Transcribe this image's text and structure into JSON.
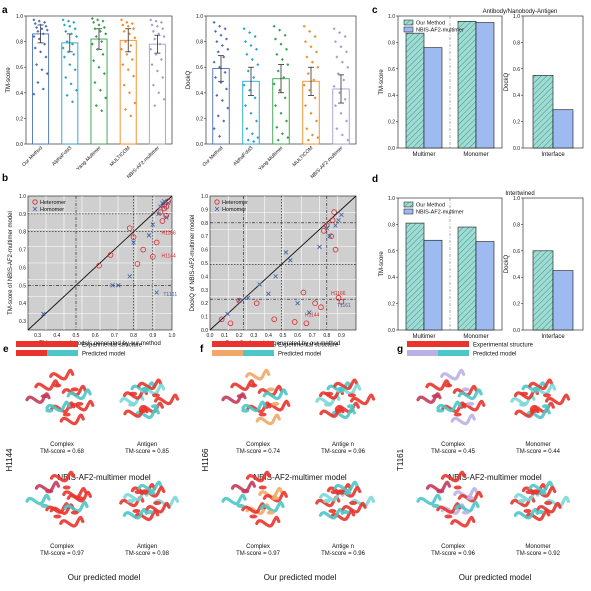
{
  "panel_labels": {
    "a": "a",
    "b": "b",
    "c": "c",
    "d": "d",
    "e": "e",
    "f": "f",
    "g": "g"
  },
  "colors": {
    "our_method": "#4a6fb5",
    "alphafold3": "#23a3c9",
    "yang_multimer": "#34a04a",
    "multicom": "#f08a24",
    "nbis": "#a89ad1",
    "hetero": "#d62728",
    "homo": "#3b5ea8",
    "our_bar": "#9fdcd3",
    "nbis_bar": "#9dbbf0",
    "experimental": "#e8342c",
    "predicted_our": "#4cc6c6",
    "predicted_nbis": "#bcb1e6",
    "predicted_orange": "#f0a868"
  },
  "chart_data": [
    {
      "id": "a-left",
      "type": "bar",
      "categories": [
        "Our Method",
        "AlphaFold3",
        "Yang-Multimer",
        "MULTICOM",
        "NBIS-AF2-multimer"
      ],
      "values": [
        0.86,
        0.79,
        0.82,
        0.81,
        0.78
      ],
      "errors": [
        0.07,
        0.07,
        0.08,
        0.09,
        0.07
      ],
      "ylabel": "TM-score",
      "ylim": [
        0,
        1.0
      ],
      "yticks": [
        "0.0",
        "0.2",
        "0.4",
        "0.6",
        "0.8",
        "1.0"
      ],
      "points": [
        [
          0.97,
          0.96,
          0.95,
          0.94,
          0.93,
          0.92,
          0.91,
          0.9,
          0.89,
          0.88,
          0.86,
          0.84,
          0.82,
          0.78,
          0.75,
          0.72,
          0.68,
          0.62,
          0.58,
          0.55,
          0.48,
          0.43,
          0.39
        ],
        [
          0.97,
          0.96,
          0.95,
          0.93,
          0.92,
          0.9,
          0.88,
          0.86,
          0.84,
          0.8,
          0.78,
          0.75,
          0.72,
          0.7,
          0.68,
          0.62,
          0.58,
          0.52,
          0.47,
          0.42,
          0.38,
          0.33
        ],
        [
          0.98,
          0.97,
          0.96,
          0.95,
          0.93,
          0.91,
          0.9,
          0.88,
          0.86,
          0.84,
          0.8,
          0.78,
          0.74,
          0.7,
          0.65,
          0.6,
          0.55,
          0.48,
          0.42,
          0.36,
          0.3,
          0.26
        ],
        [
          0.97,
          0.95,
          0.94,
          0.93,
          0.92,
          0.9,
          0.88,
          0.86,
          0.83,
          0.8,
          0.77,
          0.74,
          0.7,
          0.66,
          0.62,
          0.58,
          0.53,
          0.46,
          0.4,
          0.32,
          0.27,
          0.22
        ],
        [
          0.97,
          0.96,
          0.95,
          0.93,
          0.92,
          0.9,
          0.88,
          0.86,
          0.84,
          0.82,
          0.78,
          0.74,
          0.7,
          0.66,
          0.62,
          0.57,
          0.52,
          0.46,
          0.4,
          0.35,
          0.3
        ]
      ]
    },
    {
      "id": "a-right",
      "type": "bar",
      "categories": [
        "Our Method",
        "AlphaFold3",
        "Yang-Multimer",
        "MULTICOM",
        "NBIS-AF2-multimer"
      ],
      "values": [
        0.59,
        0.49,
        0.51,
        0.49,
        0.43
      ],
      "errors": [
        0.1,
        0.11,
        0.11,
        0.11,
        0.11
      ],
      "ylabel": "DockQ",
      "ylim": [
        0,
        1.0
      ],
      "yticks": [
        "0.0",
        "0.2",
        "0.4",
        "0.6",
        "0.8",
        "1.0"
      ],
      "points": [
        [
          0.95,
          0.92,
          0.9,
          0.88,
          0.85,
          0.82,
          0.8,
          0.77,
          0.74,
          0.72,
          0.68,
          0.64,
          0.6,
          0.56,
          0.52,
          0.48,
          0.43,
          0.38,
          0.34,
          0.28,
          0.22,
          0.18,
          0.12,
          0.06
        ],
        [
          0.9,
          0.87,
          0.84,
          0.8,
          0.77,
          0.74,
          0.7,
          0.66,
          0.62,
          0.57,
          0.52,
          0.46,
          0.42,
          0.36,
          0.3,
          0.24,
          0.18,
          0.12,
          0.08,
          0.05,
          0.03,
          0.02
        ],
        [
          0.92,
          0.89,
          0.85,
          0.82,
          0.78,
          0.74,
          0.7,
          0.66,
          0.62,
          0.57,
          0.52,
          0.47,
          0.42,
          0.36,
          0.3,
          0.24,
          0.18,
          0.13,
          0.08,
          0.05,
          0.03
        ],
        [
          0.92,
          0.88,
          0.84,
          0.8,
          0.76,
          0.72,
          0.68,
          0.64,
          0.6,
          0.55,
          0.5,
          0.46,
          0.42,
          0.36,
          0.3,
          0.24,
          0.18,
          0.12,
          0.07,
          0.05,
          0.03
        ],
        [
          0.9,
          0.87,
          0.84,
          0.8,
          0.76,
          0.72,
          0.68,
          0.64,
          0.6,
          0.55,
          0.5,
          0.45,
          0.4,
          0.35,
          0.3,
          0.24,
          0.18,
          0.12,
          0.07,
          0.03
        ]
      ]
    },
    {
      "id": "b-left",
      "type": "scatter",
      "xlabel": "TM-score of models generated by our method",
      "ylabel": "TM-score of NBIS-AF2-multimer model",
      "xlim": [
        0.25,
        1.0
      ],
      "ylim": [
        0.25,
        1.0
      ],
      "xticks": [
        "0.3",
        "0.4",
        "0.5",
        "0.6",
        "0.7",
        "0.8",
        "0.9",
        "1.0"
      ],
      "yticks": [
        "0.3",
        "0.4",
        "0.5",
        "0.6",
        "0.7",
        "0.8",
        "0.9",
        "1.0"
      ],
      "series": [
        {
          "name": "Heteromer",
          "marker": "circle",
          "x": [
            0.62,
            0.68,
            0.82,
            0.8,
            0.78,
            0.85,
            0.9,
            0.92,
            0.95,
            0.97,
            0.96,
            0.96,
            0.98,
            0.94,
            0.97
          ],
          "y": [
            0.61,
            0.67,
            0.62,
            0.77,
            0.82,
            0.7,
            0.66,
            0.74,
            0.86,
            0.89,
            0.93,
            0.95,
            0.97,
            0.91,
            0.94
          ]
        },
        {
          "name": "Homomer",
          "marker": "x",
          "x": [
            0.33,
            0.69,
            0.72,
            0.78,
            0.8,
            0.88,
            0.9,
            0.93,
            0.94,
            0.95,
            0.96,
            0.97,
            0.98,
            0.92
          ],
          "y": [
            0.34,
            0.5,
            0.5,
            0.55,
            0.74,
            0.78,
            0.84,
            0.9,
            0.94,
            0.96,
            0.97,
            0.88,
            0.96,
            0.46
          ]
        }
      ],
      "annotations": [
        {
          "text": "H1166",
          "x": 0.945,
          "y": 0.785,
          "color": "#d62728"
        },
        {
          "text": "H1144",
          "x": 0.945,
          "y": 0.655,
          "color": "#d62728"
        },
        {
          "text": "T1161",
          "x": 0.955,
          "y": 0.44,
          "color": "#3b5ea8"
        }
      ]
    },
    {
      "id": "b-right",
      "type": "scatter",
      "xlabel": "DockQ of models generated by our method",
      "ylabel": "DockQ of NBIS-AF2-multimer model",
      "xlim": [
        0,
        1.0
      ],
      "ylim": [
        0,
        1.0
      ],
      "xticks": [
        "0.0",
        "0.1",
        "0.2",
        "0.3",
        "0.4",
        "0.5",
        "0.6",
        "0.7",
        "0.8",
        "0.9"
      ],
      "yticks": [
        "0.0",
        "0.1",
        "0.2",
        "0.3",
        "0.4",
        "0.5",
        "0.6",
        "0.7",
        "0.8",
        "0.9",
        "1.0"
      ],
      "series": [
        {
          "name": "Heteromer",
          "marker": "circle",
          "x": [
            0.08,
            0.14,
            0.2,
            0.32,
            0.44,
            0.58,
            0.64,
            0.66,
            0.72,
            0.78,
            0.8,
            0.83,
            0.84,
            0.85,
            0.86,
            0.88,
            0.9,
            0.76
          ],
          "y": [
            0.08,
            0.05,
            0.22,
            0.2,
            0.08,
            0.06,
            0.28,
            0.05,
            0.2,
            0.74,
            0.78,
            0.7,
            0.82,
            0.88,
            0.6,
            0.24,
            0.21,
            0.17
          ]
        },
        {
          "name": "Homomer",
          "marker": "x",
          "x": [
            0.12,
            0.2,
            0.26,
            0.34,
            0.4,
            0.45,
            0.52,
            0.55,
            0.6,
            0.68,
            0.75,
            0.8,
            0.82,
            0.86,
            0.9,
            0.88
          ],
          "y": [
            0.12,
            0.22,
            0.24,
            0.34,
            0.27,
            0.4,
            0.58,
            0.52,
            0.2,
            0.13,
            0.62,
            0.76,
            0.7,
            0.78,
            0.86,
            0.82
          ]
        }
      ],
      "annotations": [
        {
          "text": "H1166",
          "x": 0.83,
          "y": 0.26,
          "color": "#d62728"
        },
        {
          "text": "H1144",
          "x": 0.65,
          "y": 0.1,
          "color": "#d62728"
        },
        {
          "text": "T1161",
          "x": 0.87,
          "y": 0.17,
          "color": "#3b5ea8"
        }
      ]
    },
    {
      "id": "c",
      "type": "bar",
      "title": "Antibody/Nanobody-Antigen",
      "legend": [
        "Our Method",
        "NBIS-AF2-multimer"
      ],
      "left": {
        "ylabel": "TM-score",
        "ylim": [
          0,
          1.0
        ],
        "categories": [
          "Multimer",
          "Monomer"
        ],
        "series": [
          {
            "name": "Our Method",
            "values": [
              0.87,
              0.96
            ]
          },
          {
            "name": "NBIS-AF2-multimer",
            "values": [
              0.76,
              0.95
            ]
          }
        ]
      },
      "right": {
        "ylabel": "DockQ",
        "ylim": [
          0,
          1.0
        ],
        "categories": [
          "Interface"
        ],
        "series": [
          {
            "name": "Our Method",
            "values": [
              0.55
            ]
          },
          {
            "name": "NBIS-AF2-multimer",
            "values": [
              0.29
            ]
          }
        ]
      },
      "yticks": [
        "0.0",
        "0.2",
        "0.4",
        "0.6",
        "0.8",
        "1.0"
      ]
    },
    {
      "id": "d",
      "type": "bar",
      "title": "Intertwined",
      "legend": [
        "Our Method",
        "NBIS-AF2-multimer"
      ],
      "left": {
        "ylabel": "TM-score",
        "ylim": [
          0,
          1.0
        ],
        "categories": [
          "Multimer",
          "Monomer"
        ],
        "series": [
          {
            "name": "Our Method",
            "values": [
              0.81,
              0.78
            ]
          },
          {
            "name": "NBIS-AF2-multimer",
            "values": [
              0.68,
              0.67
            ]
          }
        ]
      },
      "right": {
        "ylabel": "DockQ",
        "ylim": [
          0,
          1.0
        ],
        "categories": [
          "Interface"
        ],
        "series": [
          {
            "name": "Our Method",
            "values": [
              0.6
            ]
          },
          {
            "name": "NBIS-AF2-multimer",
            "values": [
              0.45
            ]
          }
        ]
      },
      "yticks": [
        "0.0",
        "0.2",
        "0.4",
        "0.6",
        "0.8",
        "1.0"
      ]
    }
  ],
  "structure_panels": {
    "legend_experimental": "Experimental structure",
    "legend_predicted": "Predicted model",
    "e": {
      "target": "H1144",
      "top": {
        "left_label": "Complex",
        "left_score": "TM-score = 0.68",
        "right_label": "Antigen",
        "right_score": "TM-score = 0.85",
        "caption": "NBIS-AF2-multimer model"
      },
      "bottom": {
        "left_label": "Complex",
        "left_score": "TM-score = 0.97",
        "right_label": "Antigen",
        "right_score": "TM-score = 0.98",
        "caption": "Our predicted model"
      }
    },
    "f": {
      "target": "H1166",
      "top": {
        "left_label": "Complex",
        "left_score": "TM-score = 0.74",
        "right_label": "Antige n",
        "right_score": "TM-score = 0.96",
        "caption": "NBIS-AF2-multimer model"
      },
      "bottom": {
        "left_label": "Complex",
        "left_score": "TM-score = 0.97",
        "right_label": "Antige n",
        "right_score": "TM-score = 0.96",
        "caption": "Our predicted model"
      }
    },
    "g": {
      "target": "T1161",
      "top": {
        "left_label": "Complex",
        "left_score": "TM-score = 0.45",
        "right_label": "Monomer",
        "right_score": "TM-score = 0.44",
        "caption": "NBIS-AF2-multimer model"
      },
      "bottom": {
        "left_label": "Complex",
        "left_score": "TM-score = 0.96",
        "right_label": "Monomer",
        "right_score": "TM-score = 0.92",
        "caption": "Our predicted model"
      }
    }
  }
}
